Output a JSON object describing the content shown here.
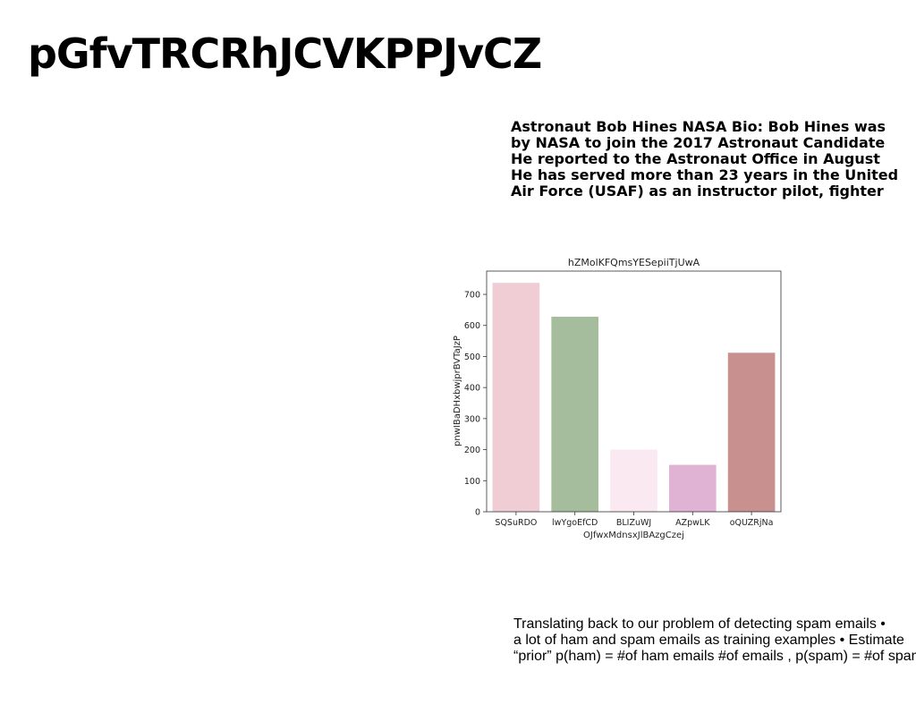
{
  "page": {
    "title": "pGfvTRCRhJCVKPPJvCZ"
  },
  "bio_text": {
    "lines": [
      "Astronaut Bob Hines NASA Bio: Bob Hines was",
      "by NASA to join the 2017 Astronaut Candidate",
      "He reported to the Astronaut Office in August",
      "He has served more than 23 years in the United",
      "Air Force (USAF) as an instructor pilot, fighter"
    ]
  },
  "chart_data": {
    "type": "bar",
    "title": "hZMolKFQmsYESepiiTjUwA",
    "xlabel": "OJfwxMdnsxJlBAzgCzej",
    "ylabel": "pnwIBaDHxbwjprBVTaJzP",
    "categories": [
      "SQSuRDO",
      "lwYgoEfCD",
      "BLIZuWJ",
      "AZpwLK",
      "oQUZRjNa"
    ],
    "values": [
      737,
      628,
      200,
      151,
      512
    ],
    "colors": [
      "#f0cdd5",
      "#a5bd9c",
      "#fbe9f1",
      "#e0b2d3",
      "#c99090"
    ],
    "ylim": [
      0,
      775
    ],
    "yticks": [
      0,
      100,
      200,
      300,
      400,
      500,
      600,
      700
    ],
    "grid": false
  },
  "spam_text": {
    "lines": [
      "Translating back to our problem of detecting spam emails •",
      "a lot of ham and spam emails as training examples • Estimate",
      "“prior” p(ham) = #of ham emails #of emails , p(spam) = #of spam"
    ]
  }
}
